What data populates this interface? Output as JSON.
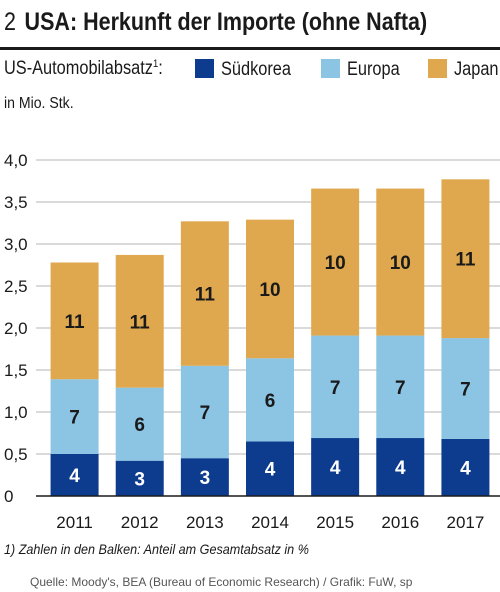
{
  "header": {
    "number": "2",
    "title": "USA: Herkunft der Importe (ohne Nafta)"
  },
  "legend": {
    "label": "US-Automobilabsatz",
    "label_sup": "1",
    "label_suffix": ":",
    "items": [
      {
        "name": "Südkorea",
        "color": "#0d3b8e"
      },
      {
        "name": "Europa",
        "color": "#8cc4e3"
      },
      {
        "name": "Japan",
        "color": "#e0a84e"
      }
    ]
  },
  "unit": "in Mio. Stk.",
  "footnote": "1) Zahlen in den Balken: Anteil am Gesamtabsatz in %",
  "source": "Quelle: Moody's, BEA (Bureau of Economic Research) / Grafik: FuW, sp",
  "chart_data": {
    "type": "bar",
    "stacked": true,
    "title": "USA: Herkunft der Importe (ohne Nafta)",
    "ylabel": "in Mio. Stk.",
    "ylim": [
      0,
      4.0
    ],
    "yticks": [
      "0",
      "0,5",
      "1,0",
      "1,5",
      "2,0",
      "2,5",
      "3,0",
      "3,5",
      "4,0"
    ],
    "grid": true,
    "categories": [
      "2011",
      "2012",
      "2013",
      "2014",
      "2015",
      "2016",
      "2017"
    ],
    "series": [
      {
        "name": "Südkorea",
        "color": "#0d3b8e",
        "values": [
          0.5,
          0.42,
          0.45,
          0.65,
          0.69,
          0.69,
          0.68
        ],
        "labels": [
          "4",
          "3",
          "3",
          "4",
          "4",
          "4",
          "4"
        ]
      },
      {
        "name": "Europa",
        "color": "#8cc4e3",
        "values": [
          0.89,
          0.87,
          1.1,
          0.99,
          1.22,
          1.22,
          1.2
        ],
        "labels": [
          "7",
          "6",
          "7",
          "6",
          "7",
          "7",
          "7"
        ]
      },
      {
        "name": "Japan",
        "color": "#e0a84e",
        "values": [
          1.39,
          1.58,
          1.72,
          1.65,
          1.75,
          1.75,
          1.89
        ],
        "labels": [
          "11",
          "11",
          "11",
          "10",
          "10",
          "10",
          "11"
        ]
      }
    ]
  }
}
